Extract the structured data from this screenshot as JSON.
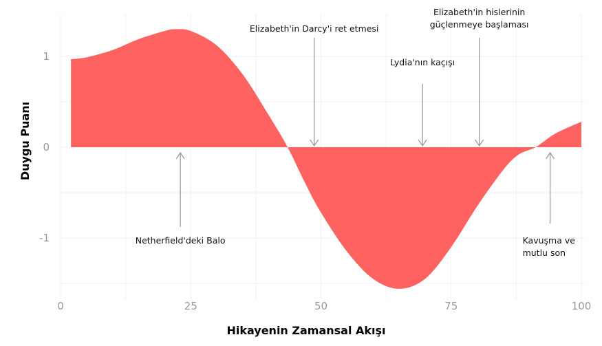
{
  "chart_data": {
    "type": "area",
    "title": "",
    "xlabel": "Hikayenin Zamansal Akışı",
    "ylabel": "Duygu Puanı",
    "xlim": [
      0,
      100
    ],
    "ylim": [
      -1.6,
      1.35
    ],
    "xticks": [
      "0",
      "25",
      "50",
      "75",
      "100"
    ],
    "yticks": [
      "1",
      "0",
      "-1"
    ],
    "grid": true,
    "fill_color": "#ff6361",
    "series": [
      {
        "x": [
          2,
          5,
          10,
          15,
          20,
          22,
          25,
          30,
          35,
          40,
          43.6,
          47,
          50,
          55,
          60,
          65,
          70,
          75,
          80,
          85,
          88,
          91.2,
          95,
          100
        ],
        "y": [
          0.97,
          0.99,
          1.07,
          1.19,
          1.28,
          1.3,
          1.28,
          1.12,
          0.8,
          0.35,
          0,
          -0.4,
          -0.72,
          -1.15,
          -1.45,
          -1.56,
          -1.45,
          -1.1,
          -0.65,
          -0.25,
          -0.08,
          0,
          0.15,
          0.28
        ]
      }
    ],
    "annotations": [
      {
        "lines": [
          "Netherfield'deki Balo"
        ],
        "x": 23,
        "direction": "up"
      },
      {
        "lines": [
          "Elizabeth'in Darcy'i ret etmesi"
        ],
        "x": 48.7,
        "direction": "down"
      },
      {
        "lines": [
          "Lydia'nın kaçışı"
        ],
        "x": 69.5,
        "direction": "down"
      },
      {
        "lines": [
          "Elizabeth'in hislerinin",
          "güçlenmeye başlaması"
        ],
        "x": 80.4,
        "direction": "down"
      },
      {
        "lines": [
          "Kavuşma ve",
          "mutlu son"
        ],
        "x": 94,
        "direction": "up"
      }
    ]
  }
}
